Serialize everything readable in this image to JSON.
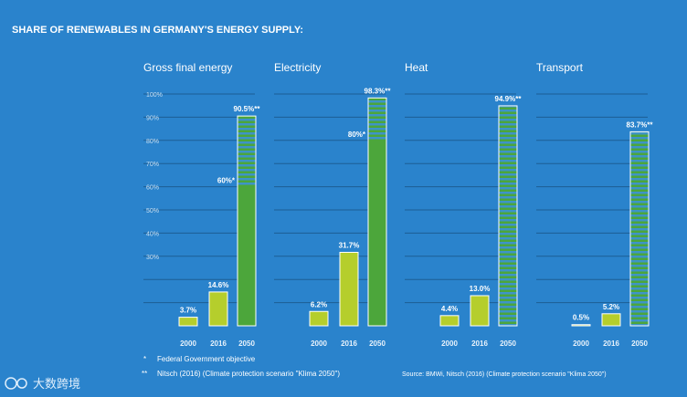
{
  "chart_data": {
    "type": "bar",
    "title": "SHARE OF RENEWABLES IN GERMANY'S ENERGY SUPPLY:",
    "categories": [
      "2000",
      "2016",
      "2050"
    ],
    "ylim": [
      0,
      100
    ],
    "yticks": [
      "100%",
      "90%",
      "80%",
      "70%",
      "60%",
      "50%",
      "40%",
      "30%"
    ],
    "panels": [
      {
        "name": "Gross final energy",
        "values": [
          3.7,
          14.6,
          90.5
        ],
        "labels": [
          "3.7%",
          "14.6%",
          "90.5%**"
        ],
        "objective": 60,
        "objective_label": "60%*"
      },
      {
        "name": "Electricity",
        "values": [
          6.2,
          31.7,
          98.3
        ],
        "labels": [
          "6.2%",
          "31.7%",
          "98.3%**"
        ],
        "objective": 80,
        "objective_label": "80%*"
      },
      {
        "name": "Heat",
        "values": [
          4.4,
          13.0,
          94.9
        ],
        "labels": [
          "4.4%",
          "13.0%",
          "94.9%**"
        ],
        "objective": null,
        "objective_label": ""
      },
      {
        "name": "Transport",
        "values": [
          0.5,
          5.2,
          83.7
        ],
        "labels": [
          "0.5%",
          "5.2%",
          "83.7%**"
        ],
        "objective": null,
        "objective_label": ""
      }
    ]
  },
  "footnotes": {
    "note1_mark": "*",
    "note1": "Federal Government objective",
    "note2_mark": "**",
    "note2": "Nitsch (2016) (Climate protection scenario \"Klima 2050\")"
  },
  "source": "Source:  BMWi, Nitsch (2016) (Climate protection scenario \"Klima 2050\")",
  "watermark": "大数跨境",
  "colors": {
    "background": "#2a83cc",
    "bar_light": "#b5ce2c",
    "bar_dark": "#4ca63b",
    "stripe": "#3e94c7",
    "gridline": "#1c5e93"
  }
}
